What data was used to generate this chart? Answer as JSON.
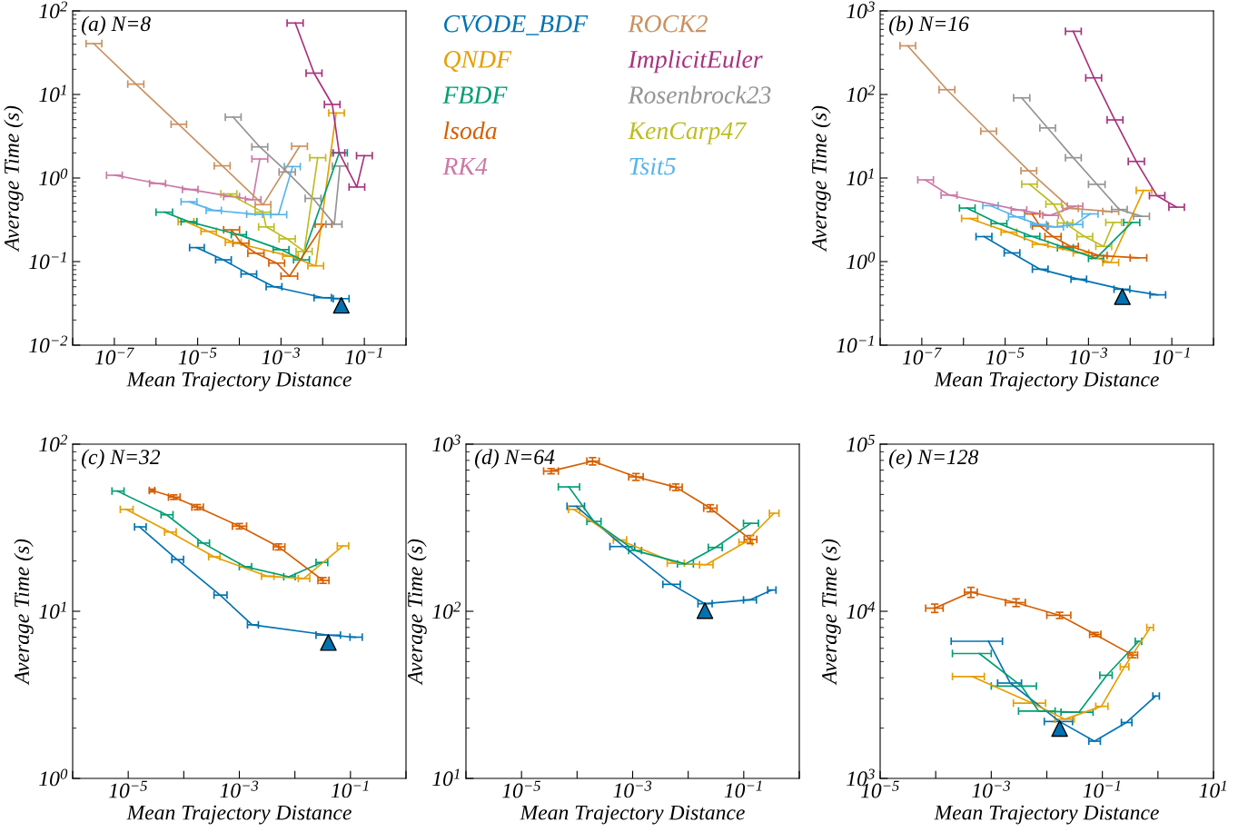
{
  "chart_data": [
    {
      "type": "line",
      "title": "(a) N=8",
      "xlabel": "Mean Trajectory Distance",
      "ylabel": "Average Time (s)",
      "log": "xy",
      "marker": "none",
      "legend": "right",
      "xlim": [
        1e-08,
        1
      ],
      "ylim": [
        0.01,
        100
      ],
      "xticks": [
        {
          "value": 1e-08,
          "label": null
        },
        {
          "value": 1e-07,
          "label": "10$^{−7}$"
        },
        {
          "value": 1e-06,
          "label": null
        },
        {
          "value": 1e-05,
          "label": "10$^{−5}$"
        },
        {
          "value": 0.0001,
          "label": null
        },
        {
          "value": 0.001,
          "label": "10$^{−3}$"
        },
        {
          "value": 0.01,
          "label": null
        },
        {
          "value": 0.1,
          "label": "10$^{−1}$"
        },
        {
          "value": 1,
          "label": null
        }
      ],
      "yticks": [
        {
          "value": 0.01,
          "label": "10$^{−2}$"
        },
        {
          "value": 0.1,
          "label": "10$^{−1}$"
        },
        {
          "value": 1,
          "label": "10$^{0}$"
        },
        {
          "value": 10,
          "label": "10$^{1}$"
        },
        {
          "value": 100,
          "label": "10$^{2}$"
        }
      ],
      "series": [
        {
          "name": "CVODE_BDF",
          "color": "#0072b2",
          "x": [
            9.4e-06,
            4.1e-05,
            0.00017,
            0.00068,
            0.0102,
            0.028
          ],
          "values": [
            0.147,
            0.105,
            0.071,
            0.05,
            0.037,
            0.036
          ],
          "xerrors": [
            [
              6.4e-06,
              1.44e-05
            ],
            [
              2.7e-05,
              6.4e-05
            ],
            [
              0.00011,
              0.00026
            ],
            [
              0.00044,
              0.00105
            ],
            [
              0.0062,
              0.0162
            ],
            [
              0.018,
              0.043
            ]
          ]
        },
        {
          "name": "QNDF",
          "color": "#e69f00",
          "x": [
            5.2e-06,
            1.8e-05,
            7.1e-05,
            0.0017,
            0.0068,
            0.021
          ],
          "values": [
            0.3,
            0.23,
            0.17,
            0.116,
            0.089,
            6.0
          ],
          "xerrors": [
            [
              3.4e-06,
              8.1e-06
            ],
            [
              1.2e-05,
              2.8e-05
            ],
            [
              4.6e-05,
              0.000111
            ],
            [
              0.0011,
              0.0026
            ],
            [
              0.0044,
              0.0105
            ],
            [
              0.014,
              0.033
            ]
          ]
        },
        {
          "name": "FBDF",
          "color": "#009e73",
          "x": [
            1.6e-06,
            6.2e-06,
            9.8e-05,
            0.001,
            0.0031,
            0.025
          ],
          "values": [
            0.39,
            0.3,
            0.21,
            0.139,
            0.105,
            2.0
          ],
          "xerrors": [
            [
              1e-06,
              2.5e-06
            ],
            [
              4e-06,
              9.6e-06
            ],
            [
              6.4e-05,
              0.000148
            ],
            [
              0.00065,
              0.00155
            ],
            [
              0.002,
              0.0048
            ],
            [
              0.016,
              0.039
            ]
          ]
        },
        {
          "name": "lsoda",
          "color": "#d55e00",
          "x": [
            6.5e-05,
            0.00011,
            0.00025,
            0.00079,
            0.0016,
            0.0106
          ],
          "values": [
            0.24,
            0.166,
            0.126,
            0.096,
            0.067,
            0.28
          ],
          "xerrors": [
            [
              4.2e-05,
              0.000101
            ],
            [
              7e-05,
              0.00017
            ],
            [
              0.00016,
              0.00039
            ],
            [
              0.00051,
              0.00122
            ],
            [
              0.001,
              0.0025
            ],
            [
              0.0066,
              0.0166
            ]
          ]
        },
        {
          "name": "RK4",
          "color": "#cc79a7",
          "x": [
            1e-07,
            1.1e-06,
            6.6e-06,
            6.5e-05,
            0.00021,
            0.00031
          ],
          "values": [
            1.08,
            0.86,
            0.73,
            0.6,
            0.55,
            1.69
          ],
          "xerrors": [
            [
              6.5e-08,
              1.55e-07
            ],
            [
              7e-07,
              1.7e-06
            ],
            [
              4.3e-06,
              1.02e-05
            ],
            [
              4.2e-05,
              0.000101
            ],
            [
              0.00014,
              0.00033
            ],
            [
              0.0002,
              0.00048
            ]
          ]
        },
        {
          "name": "ROCK2",
          "color": "#ca9161",
          "x": [
            3.2e-08,
            3.3e-07,
            3.5e-06,
            3.9e-05,
            0.00037,
            0.0028
          ],
          "values": [
            40.6,
            13.3,
            4.4,
            1.4,
            0.48,
            2.4
          ],
          "xerrors": [
            [
              2.1e-08,
              5e-08
            ],
            [
              2.1e-07,
              5.1e-07
            ],
            [
              2.3e-06,
              5.4e-06
            ],
            [
              2.5e-05,
              6e-05
            ],
            [
              0.00024,
              0.00057
            ],
            [
              0.0018,
              0.0043
            ]
          ]
        },
        {
          "name": "ImplicitEuler",
          "color": "#a8327e",
          "x": [
            0.0022,
            0.0062,
            0.017,
            0.025,
            0.066,
            0.1
          ],
          "values": [
            71.6,
            18,
            7.6,
            2.0,
            0.78,
            1.85
          ],
          "xerrors": [
            [
              0.0014,
              0.0034
            ],
            [
              0.004,
              0.0096
            ],
            [
              0.011,
              0.026
            ],
            [
              0.018,
              0.034
            ],
            [
              0.043,
              0.102
            ],
            [
              0.065,
              0.155
            ]
          ]
        },
        {
          "name": "Rosenbrock23",
          "color": "#949494",
          "x": [
            7.1e-05,
            0.00031,
            0.0014,
            0.0059,
            0.019,
            0.026
          ],
          "values": [
            5.35,
            2.36,
            1.18,
            0.57,
            0.28,
            1.39
          ],
          "xerrors": [
            [
              4.6e-05,
              0.00011
            ],
            [
              0.0002,
              0.00048
            ],
            [
              0.0009,
              0.0022
            ],
            [
              0.0038,
              0.0091
            ],
            [
              0.012,
              0.029
            ],
            [
              0.017,
              0.04
            ]
          ]
        },
        {
          "name": "KenCarp47",
          "color": "#bcbd22",
          "x": [
            5.6e-05,
            0.00037,
            0.00044,
            0.0014,
            0.0036,
            0.0076
          ],
          "values": [
            0.645,
            0.39,
            0.26,
            0.187,
            0.132,
            1.75
          ],
          "xerrors": [
            [
              3.6e-05,
              8.7e-05
            ],
            [
              0.00024,
              0.00057
            ],
            [
              0.00029,
              0.00068
            ],
            [
              0.0009,
              0.0022
            ],
            [
              0.0023,
              0.0056
            ],
            [
              0.0049,
              0.0118
            ]
          ]
        },
        {
          "name": "Tsit5",
          "color": "#56b4e9",
          "x": [
            6.2e-06,
            2.4e-05,
            0.00023,
            0.00087,
            0.0019
          ],
          "values": [
            0.52,
            0.41,
            0.37,
            0.365,
            1.37
          ],
          "xerrors": [
            [
              4e-06,
              9.6e-06
            ],
            [
              1.6e-05,
              3.7e-05
            ],
            [
              0.00015,
              0.00036
            ],
            [
              0.00057,
              0.00137
            ],
            [
              0.0012,
              0.0029
            ]
          ]
        },
        {
          "type": "scatter",
          "marker": "triangle",
          "color": "#0072b2",
          "x": [
            0.028
          ],
          "values": [
            0.03
          ]
        }
      ]
    },
    {
      "type": "line",
      "title": "(b) N=16",
      "xlabel": "Mean Trajectory Distance",
      "ylabel": "Average Time (s)",
      "log": "xy",
      "marker": "none",
      "xlim": [
        1e-08,
        1
      ],
      "ylim": [
        0.1,
        1000
      ],
      "xticks": [
        {
          "value": 1e-08,
          "label": null
        },
        {
          "value": 1e-07,
          "label": "10$^{−7}$"
        },
        {
          "value": 1e-06,
          "label": null
        },
        {
          "value": 1e-05,
          "label": "10$^{−5}$"
        },
        {
          "value": 0.0001,
          "label": null
        },
        {
          "value": 0.001,
          "label": "10$^{−3}$"
        },
        {
          "value": 0.01,
          "label": null
        },
        {
          "value": 0.1,
          "label": "10$^{−1}$"
        },
        {
          "value": 1,
          "label": null
        }
      ],
      "yticks": [
        {
          "value": 0.1,
          "label": "10$^{−1}$"
        },
        {
          "value": 1,
          "label": "10$^{0}$"
        },
        {
          "value": 10,
          "label": "10$^{1}$"
        },
        {
          "value": 100,
          "label": "10$^{2}$"
        },
        {
          "value": 1000,
          "label": "10$^{3}$"
        }
      ],
      "series": [
        {
          "color": "#0072b2",
          "x": [
            3.1e-06,
            1.45e-05,
            6.9e-05,
            0.00058,
            0.0063,
            0.046
          ],
          "values": [
            1.99,
            1.27,
            0.81,
            0.615,
            0.467,
            0.4
          ],
          "xerrors": [
            [
              2e-06,
              4.8e-06
            ],
            [
              9.5e-06,
              2.25e-05
            ],
            [
              4.5e-05,
              0.000107
            ],
            [
              0.00038,
              0.0009
            ],
            [
              0.0041,
              0.0098
            ],
            [
              0.03,
              0.071
            ]
          ]
        },
        {
          "color": "#e69f00",
          "x": [
            1.4e-06,
            1.2e-05,
            6.9e-05,
            0.00066,
            0.0034,
            0.021
          ],
          "values": [
            3.28,
            2.25,
            1.61,
            1.27,
            0.975,
            7.1
          ],
          "xerrors": [
            [
              9e-07,
              2.2e-06
            ],
            [
              8e-06,
              1.9e-05
            ],
            [
              4.5e-05,
              0.000107
            ],
            [
              0.00043,
              0.00102
            ],
            [
              0.0022,
              0.0053
            ],
            [
              0.014,
              0.033
            ]
          ]
        },
        {
          "color": "#009e73",
          "x": [
            1.2e-06,
            7.1e-06,
            4.4e-05,
            0.00028,
            0.0015,
            0.011
          ],
          "values": [
            4.37,
            2.85,
            2.0,
            1.46,
            1.09,
            2.94
          ],
          "xerrors": [
            [
              8e-07,
              1.9e-06
            ],
            [
              4.6e-06,
              1.1e-05
            ],
            [
              2.9e-05,
              6.8e-05
            ],
            [
              0.00018,
              0.00043
            ],
            [
              0.001,
              0.0023
            ],
            [
              0.007,
              0.017
            ]
          ]
        },
        {
          "color": "#d55e00",
          "x": [
            4.4e-05,
            6.9e-05,
            0.00014,
            0.00037,
            0.0018,
            0.016
          ],
          "values": [
            3.72,
            2.66,
            1.99,
            1.52,
            1.18,
            1.11
          ],
          "xerrors": [
            [
              2.9e-05,
              6.8e-05
            ],
            [
              4.5e-05,
              0.000107
            ],
            [
              9e-05,
              0.00022
            ],
            [
              0.00024,
              0.00057
            ],
            [
              0.0012,
              0.0028
            ],
            [
              0.01,
              0.025
            ]
          ]
        },
        {
          "color": "#cc79a7",
          "x": [
            1.2e-07,
            4.5e-07,
            2.1e-05,
            0.00012,
            0.00047
          ],
          "values": [
            9.5,
            6.25,
            4.15,
            3.57,
            4.6
          ],
          "xerrors": [
            [
              8e-08,
              1.9e-07
            ],
            [
              2.9e-07,
              7e-07
            ],
            [
              1.4e-05,
              3.3e-05
            ],
            [
              8e-05,
              0.00019
            ],
            [
              0.00031,
              0.00073
            ]
          ]
        },
        {
          "color": "#ca9161",
          "x": [
            4.6e-08,
            4e-07,
            4e-06,
            3.7e-05,
            0.00037,
            0.0034
          ],
          "values": [
            382,
            114,
            36.3,
            12.2,
            4.33,
            3.98
          ],
          "xerrors": [
            [
              3e-08,
              7.1e-08
            ],
            [
              2.6e-07,
              6.2e-07
            ],
            [
              2.6e-06,
              6.2e-06
            ],
            [
              2.4e-05,
              5.7e-05
            ],
            [
              0.00024,
              0.00057
            ],
            [
              0.0022,
              0.0053
            ]
          ]
        },
        {
          "color": "#a8327e",
          "x": [
            0.00043,
            0.00136,
            0.0043,
            0.014,
            0.044,
            0.13
          ],
          "values": [
            570,
            158,
            49.6,
            15.8,
            6.15,
            4.48
          ],
          "xerrors": [
            [
              0.00028,
              0.00067
            ],
            [
              0.00086,
              0.00206
            ],
            [
              0.0028,
              0.0067
            ],
            [
              0.009,
              0.022
            ],
            [
              0.029,
              0.068
            ],
            [
              0.085,
              0.2
            ]
          ]
        },
        {
          "color": "#949494",
          "x": [
            2.5e-05,
            0.000104,
            0.00043,
            0.0016,
            0.0055,
            0.019
          ],
          "values": [
            91,
            39.8,
            17.5,
            8.4,
            4.2,
            3.48
          ],
          "xerrors": [
            [
              1.6e-05,
              3.9e-05
            ],
            [
              6.8e-05,
              0.000161
            ],
            [
              0.00028,
              0.00067
            ],
            [
              0.001,
              0.0025
            ],
            [
              0.0036,
              0.0085
            ],
            [
              0.012,
              0.029
            ]
          ]
        },
        {
          "color": "#bcbd22",
          "x": [
            3.8e-05,
            0.000145,
            0.00027,
            0.00081,
            0.0023,
            0.004
          ],
          "values": [
            8.45,
            4.87,
            2.9,
            1.99,
            1.52,
            2.94
          ],
          "xerrors": [
            [
              2.5e-05,
              5.9e-05
            ],
            [
              9.5e-05,
              0.000225
            ],
            [
              0.00018,
              0.00042
            ],
            [
              0.00053,
              0.00126
            ],
            [
              0.0015,
              0.0036
            ],
            [
              0.0026,
              0.0062
            ]
          ]
        },
        {
          "color": "#56b4e9",
          "x": [
            4.4e-06,
            1.9e-05,
            6.3e-05,
            0.00016,
            0.00047,
            0.0011
          ],
          "values": [
            4.67,
            3.43,
            2.78,
            2.6,
            2.78,
            3.72
          ],
          "xerrors": [
            [
              2.9e-06,
              6.8e-06
            ],
            [
              1.2e-05,
              2.9e-05
            ],
            [
              4.1e-05,
              9.8e-05
            ],
            [
              0.0001,
              0.00025
            ],
            [
              0.00031,
              0.00073
            ],
            [
              0.0007,
              0.0017
            ]
          ]
        },
        {
          "type": "scatter",
          "marker": "triangle",
          "color": "#0072b2",
          "x": [
            0.0065
          ],
          "values": [
            0.38
          ]
        }
      ]
    },
    {
      "type": "line",
      "title": "(c) N=32",
      "xlabel": "Mean Trajectory Distance",
      "ylabel": "Average Time (s)",
      "log": "xy",
      "marker": "none",
      "xlim": [
        1e-06,
        1
      ],
      "ylim": [
        1,
        100
      ],
      "xticks": [
        {
          "value": 1e-06,
          "label": null
        },
        {
          "value": 1e-05,
          "label": "10$^{−5}$"
        },
        {
          "value": 0.0001,
          "label": null
        },
        {
          "value": 0.001,
          "label": "10$^{−3}$"
        },
        {
          "value": 0.01,
          "label": null
        },
        {
          "value": 0.1,
          "label": "10$^{−1}$"
        },
        {
          "value": 1,
          "label": null
        }
      ],
      "yticks": [
        {
          "value": 1,
          "label": "10$^{0}$"
        },
        {
          "value": 10,
          "label": "10$^{1}$"
        },
        {
          "value": 100,
          "label": "10$^{2}$"
        }
      ],
      "series": [
        {
          "color": "#0072b2",
          "x": [
            1.6e-05,
            7.6e-05,
            0.00045,
            0.0017,
            0.04,
            0.123
          ],
          "values": [
            32.0,
            20.4,
            12.5,
            8.3,
            7.2,
            7.0
          ],
          "xerrors": [
            [
              1.3e-05,
              2.1e-05
            ],
            [
              6.1e-05,
              9.9e-05
            ],
            [
              0.00035,
              0.0006
            ],
            [
              0.0014,
              0.0022
            ],
            [
              0.024,
              0.066
            ],
            [
              0.098,
              0.163
            ]
          ]
        },
        {
          "color": "#e69f00",
          "x": [
            9.2e-06,
            5.6e-05,
            0.00035,
            0.0032,
            0.0145,
            0.073
          ],
          "values": [
            40.7,
            29.8,
            21.2,
            16.2,
            15.7,
            24.6
          ],
          "xerrors": [
            [
              7.2e-06,
              1.22e-05
            ],
            [
              4.5e-05,
              7.3e-05
            ],
            [
              0.00028,
              0.00045
            ],
            [
              0.0025,
              0.0042
            ],
            [
              0.0115,
              0.0185
            ],
            [
              0.058,
              0.093
            ]
          ]
        },
        {
          "color": "#009e73",
          "x": [
            6.4e-06,
            4.9e-05,
            0.00022,
            0.00126,
            0.0078,
            0.03
          ],
          "values": [
            52.4,
            37.8,
            25.6,
            18.5,
            16.1,
            19.6
          ],
          "xerrors": [
            [
              5.1e-06,
              8.4e-06
            ],
            [
              3.9e-05,
              6.4e-05
            ],
            [
              0.00018,
              0.00029
            ],
            [
              0.001,
              0.00166
            ],
            [
              0.0063,
              0.0101
            ],
            [
              0.024,
              0.039
            ]
          ]
        },
        {
          "color": "#d55e00",
          "x": [
            2.7e-05,
            6.6e-05,
            0.000175,
            0.001,
            0.0051,
            0.032
          ],
          "values": [
            52.8,
            48.2,
            42.0,
            32.3,
            24.3,
            15.3
          ],
          "xerrors": [
            [
              2.4e-05,
              3e-05
            ],
            [
              5.3e-05,
              8.6e-05
            ],
            [
              0.00014,
              0.000225
            ],
            [
              0.00075,
              0.00135
            ],
            [
              0.0041,
              0.0066
            ],
            [
              0.026,
              0.041
            ]
          ],
          "errors": [
            1,
            1.5,
            1.5,
            1.2,
            1,
            0.6
          ]
        },
        {
          "type": "scatter",
          "marker": "triangle",
          "color": "#0072b2",
          "x": [
            0.04
          ],
          "values": [
            6.5
          ]
        }
      ]
    },
    {
      "type": "line",
      "title": "(d) N=64",
      "xlabel": "Mean Trajectory Distance",
      "ylabel": "Average Time (s)",
      "log": "xy",
      "marker": "none",
      "xlim": [
        1e-06,
        1
      ],
      "ylim": [
        10,
        1000
      ],
      "xticks": [
        {
          "value": 1e-06,
          "label": null
        },
        {
          "value": 1e-05,
          "label": "10$^{−5}$"
        },
        {
          "value": 0.0001,
          "label": null
        },
        {
          "value": 0.001,
          "label": "10$^{−3}$"
        },
        {
          "value": 0.01,
          "label": null
        },
        {
          "value": 0.1,
          "label": "10$^{−1}$"
        },
        {
          "value": 1,
          "label": null
        }
      ],
      "yticks": [
        {
          "value": 10,
          "label": "10$^{1}$"
        },
        {
          "value": 100,
          "label": "10$^{2}$"
        },
        {
          "value": 1000,
          "label": "10$^{3}$"
        }
      ],
      "series": [
        {
          "color": "#0072b2",
          "x": [
            9.6e-05,
            0.00069,
            0.005,
            0.02,
            0.129,
            0.32
          ],
          "values": [
            425,
            244,
            145,
            111,
            117,
            134
          ],
          "xerrors": [
            [
              6.6e-05,
              0.000136
            ],
            [
              0.00039,
              0.00109
            ],
            [
              0.0035,
              0.0072
            ],
            [
              0.015,
              0.027
            ],
            [
              0.099,
              0.169
            ],
            [
              0.27,
              0.38
            ]
          ]
        },
        {
          "color": "#e69f00",
          "x": [
            8.7e-05,
            0.00058,
            0.006,
            0.021,
            0.107,
            0.35
          ],
          "values": [
            407,
            267,
            194,
            190,
            259,
            386
          ],
          "xerrors": [
            [
              7e-05,
              0.000112
            ],
            [
              0.00045,
              0.00078
            ],
            [
              0.0042,
              0.0085
            ],
            [
              0.016,
              0.028
            ],
            [
              0.082,
              0.142
            ],
            [
              0.29,
              0.43
            ]
          ]
        },
        {
          "color": "#009e73",
          "x": [
            7.1e-05,
            0.0002,
            0.0011,
            0.0089,
            0.031,
            0.134
          ],
          "values": [
            555,
            345,
            231,
            192,
            241,
            336
          ],
          "xerrors": [
            [
              4.6e-05,
              0.000111
            ],
            [
              0.00015,
              0.00027
            ],
            [
              0.00085,
              0.00145
            ],
            [
              0.0064,
              0.0124
            ],
            [
              0.023,
              0.041
            ],
            [
              0.099,
              0.184
            ]
          ]
        },
        {
          "color": "#d55e00",
          "x": [
            3.4e-05,
            0.00019,
            0.00115,
            0.006,
            0.025,
            0.132
          ],
          "values": [
            690,
            791,
            637,
            553,
            414,
            269
          ],
          "xerrors": [
            [
              2.5e-05,
              4.6e-05
            ],
            [
              0.00015,
              0.00025
            ],
            [
              0.00085,
              0.00155
            ],
            [
              0.0047,
              0.0078
            ],
            [
              0.019,
              0.033
            ],
            [
              0.102,
              0.172
            ]
          ],
          "errors": [
            25,
            40,
            30,
            25,
            20,
            15
          ]
        },
        {
          "type": "scatter",
          "marker": "triangle",
          "color": "#0072b2",
          "x": [
            0.02
          ],
          "values": [
            101
          ]
        }
      ]
    },
    {
      "type": "line",
      "title": "(e) N=128",
      "xlabel": "Mean Trajectory Distance",
      "ylabel": "Average Time (s)",
      "log": "xy",
      "marker": "none",
      "xlim": [
        1e-05,
        10
      ],
      "ylim": [
        1000,
        100000
      ],
      "xticks": [
        {
          "value": 1e-05,
          "label": "10$^{−5}$"
        },
        {
          "value": 0.0001,
          "label": null
        },
        {
          "value": 0.001,
          "label": "10$^{−3}$"
        },
        {
          "value": 0.01,
          "label": null
        },
        {
          "value": 0.1,
          "label": "10$^{−1}$"
        },
        {
          "value": 1,
          "label": null
        },
        {
          "value": 10,
          "label": "10$^{1}$"
        }
      ],
      "yticks": [
        {
          "value": 1000,
          "label": "10$^{3}$"
        },
        {
          "value": 10000,
          "label": "10$^{4}$"
        },
        {
          "value": 100000,
          "label": "10$^{5}$"
        }
      ],
      "series": [
        {
          "color": "#0072b2",
          "x": [
            0.00089,
            0.0022,
            0.017,
            0.072,
            0.27,
            0.91
          ],
          "values": [
            6620,
            3720,
            2190,
            1670,
            2160,
            3110
          ],
          "xerrors": [
            [
              0.00019,
              0.00159
            ],
            [
              0.0013,
              0.0035
            ],
            [
              0.009,
              0.029
            ],
            [
              0.057,
              0.092
            ],
            [
              0.22,
              0.34
            ],
            [
              0.81,
              1.06
            ]
          ]
        },
        {
          "color": "#e69f00",
          "x": [
            0.00045,
            0.0055,
            0.021,
            0.096,
            0.25,
            0.73
          ],
          "values": [
            4070,
            2820,
            2260,
            2700,
            4650,
            8000
          ],
          "xerrors": [
            [
              0.0002,
              0.00075
            ],
            [
              0.0025,
              0.0095
            ],
            [
              0.014,
              0.031
            ],
            [
              0.076,
              0.126
            ],
            [
              0.21,
              0.3
            ],
            [
              0.63,
              0.83
            ]
          ]
        },
        {
          "color": "#009e73",
          "x": [
            0.00061,
            0.0035,
            0.0071,
            0.038,
            0.12,
            0.45
          ],
          "values": [
            5590,
            3570,
            2530,
            2490,
            4140,
            6610
          ],
          "xerrors": [
            [
              0.0002,
              0.001
            ],
            [
              0.001,
              0.0065
            ],
            [
              0.0031,
              0.0141
            ],
            [
              0.018,
              0.068
            ],
            [
              0.09,
              0.15
            ],
            [
              0.39,
              0.51
            ]
          ]
        },
        {
          "color": "#d55e00",
          "x": [
            9.6e-05,
            0.00043,
            0.0028,
            0.017,
            0.074,
            0.35
          ],
          "values": [
            10440,
            13000,
            11270,
            9460,
            7270,
            5470
          ],
          "xerrors": [
            [
              6.6e-05,
              0.000136
            ],
            [
              0.00033,
              0.00056
            ],
            [
              0.0018,
              0.0041
            ],
            [
              0.01,
              0.027
            ],
            [
              0.059,
              0.094
            ],
            [
              0.29,
              0.43
            ]
          ],
          "errors": [
            600,
            900,
            600,
            400,
            200,
            200
          ]
        },
        {
          "type": "scatter",
          "marker": "triangle",
          "color": "#0072b2",
          "x": [
            0.017
          ],
          "values": [
            1990
          ]
        }
      ]
    }
  ]
}
